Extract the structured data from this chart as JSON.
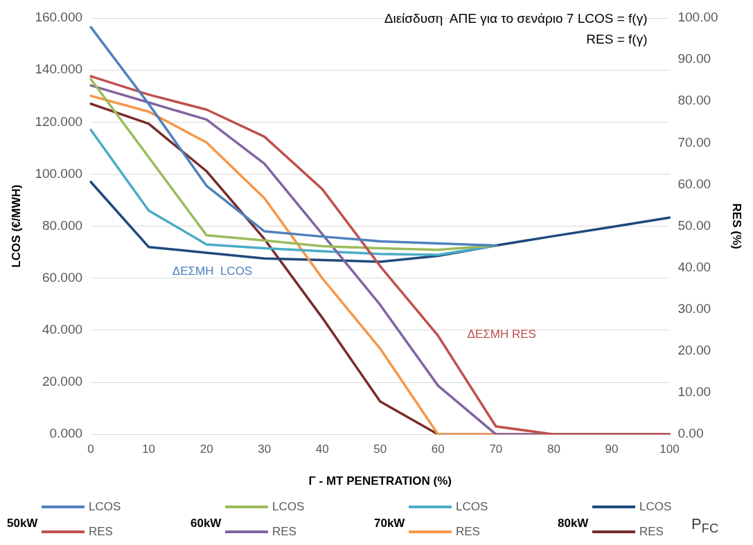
{
  "chart_data": {
    "type": "line",
    "title": "Διείσδυση  ΑΠΕ για το σενάριο 7 LCOS = f(γ)",
    "subtitle": "RES = f(γ)",
    "xlabel": "Γ - MT PENETRATION (%)",
    "ylabel": "LCOS (€/MWH)",
    "y2label": "RES (%)",
    "legend_title": "P$_{FC}$",
    "categories": [
      "0",
      "10",
      "20",
      "30",
      "40",
      "50",
      "60",
      "70",
      "80",
      "90",
      "100"
    ],
    "series": [
      {
        "name": "LCOS",
        "color": "#4f81bd",
        "values": [
          156.5,
          127,
          95.5,
          78,
          76,
          74.2,
          73.4,
          72.6,
          null,
          null,
          null
        ]
      },
      {
        "name": "RES",
        "color": "#c0504d",
        "axis": "y2",
        "values": [
          86,
          81.6,
          78,
          71.5,
          58.9,
          40.4,
          23.7,
          1.9,
          0,
          0,
          0
        ]
      },
      {
        "name": "LCOS",
        "color": "#9bbb59",
        "values": [
          136.5,
          106.5,
          76.5,
          74.5,
          72.3,
          71.5,
          70.9,
          72.6,
          null,
          null,
          null
        ]
      },
      {
        "name": "RES",
        "color": "#8064a2",
        "axis": "y2",
        "values": [
          83.8,
          79.7,
          75.6,
          65,
          48.1,
          31.1,
          11.7,
          0,
          0,
          0,
          0
        ]
      },
      {
        "name": "LCOS",
        "color": "#4bacc6",
        "values": [
          117,
          86,
          73,
          71.5,
          70.4,
          69.3,
          69,
          72.6,
          null,
          null,
          null
        ]
      },
      {
        "name": "RES",
        "color": "#f79646",
        "axis": "y2",
        "values": [
          81.3,
          77.5,
          70.1,
          56.7,
          37.5,
          20.6,
          0,
          0,
          0,
          0,
          0
        ]
      },
      {
        "name": "LCOS",
        "color": "#1f497d",
        "values": [
          97,
          72,
          69.8,
          67.6,
          67,
          66.3,
          68.6,
          72.6,
          76.2,
          79.7,
          83.3
        ]
      },
      {
        "name": "RES",
        "color": "#772c2a",
        "axis": "y2",
        "values": [
          79.4,
          74.6,
          63.2,
          46.9,
          28,
          7.9,
          0,
          0,
          0,
          0,
          0
        ]
      }
    ],
    "ylim": [
      0,
      160
    ],
    "yticks": [
      {
        "value": 0,
        "label": "0.000"
      },
      {
        "value": 20,
        "label": "20.000"
      },
      {
        "value": 40,
        "label": "40.000"
      },
      {
        "value": 60,
        "label": "60.000"
      },
      {
        "value": 80,
        "label": "80.000"
      },
      {
        "value": 100,
        "label": "100.000"
      },
      {
        "value": 120,
        "label": "120.000"
      },
      {
        "value": 140,
        "label": "140.000"
      },
      {
        "value": 160,
        "label": "160.000"
      }
    ],
    "y2lim": [
      0,
      100
    ],
    "y2ticks": [
      {
        "value": 0,
        "label": "0.00"
      },
      {
        "value": 10,
        "label": "10.00"
      },
      {
        "value": 20,
        "label": "20.00"
      },
      {
        "value": 30,
        "label": "30.00"
      },
      {
        "value": 40,
        "label": "40.00"
      },
      {
        "value": 50,
        "label": "50.00"
      },
      {
        "value": 60,
        "label": "60.00"
      },
      {
        "value": 70,
        "label": "70.00"
      },
      {
        "value": 80,
        "label": "80.00"
      },
      {
        "value": 90,
        "label": "90.00"
      },
      {
        "value": 100,
        "label": "100.00"
      }
    ],
    "grid": "y",
    "legend": "bottom",
    "marker": "none",
    "line_style": "solid",
    "annotations": [
      "ΔΕΣΜΗ  LCOS",
      "ΔΕΣΜΗ RES",
      "50kW",
      "60kW",
      "70kW",
      "80kW"
    ]
  }
}
